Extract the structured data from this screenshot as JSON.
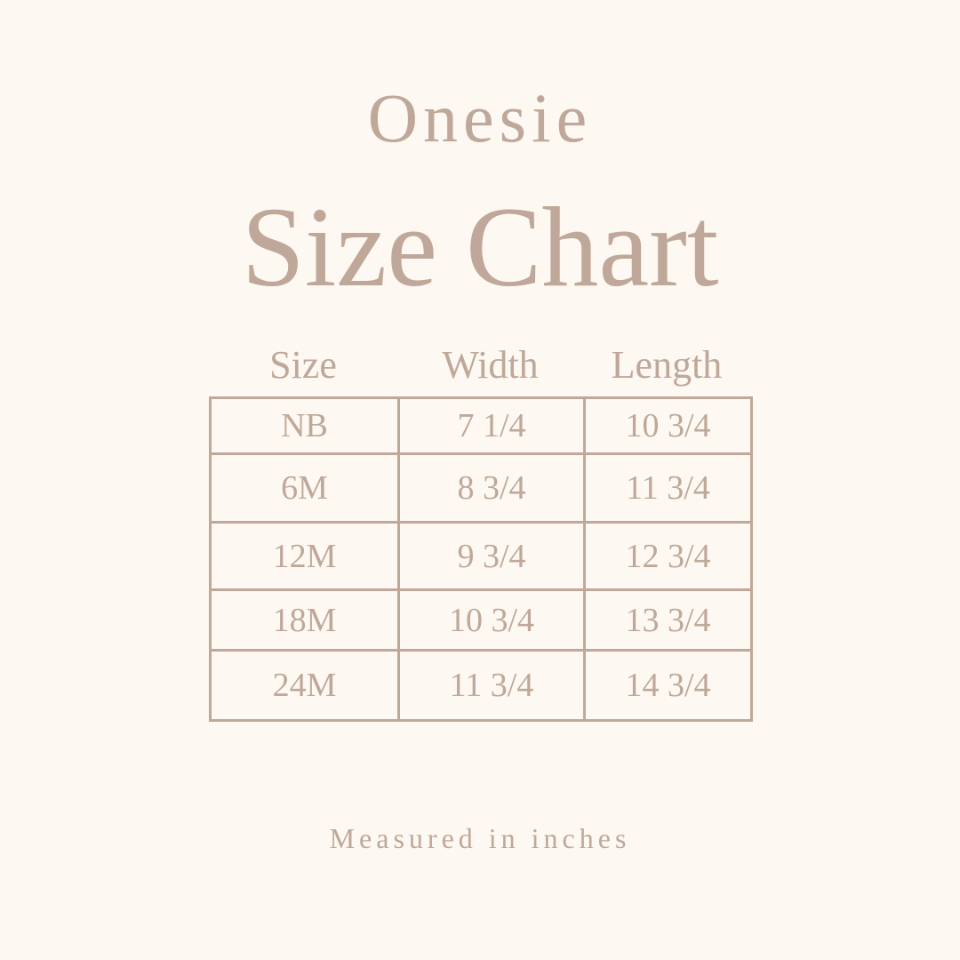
{
  "title_line1": "Onesie",
  "title_line2": "Size Chart",
  "columns": [
    "Size",
    "Width",
    "Length"
  ],
  "rows": [
    [
      "NB",
      "7 1/4",
      "10 3/4"
    ],
    [
      "6M",
      "8 3/4",
      "11 3/4"
    ],
    [
      "12M",
      "9 3/4",
      "12 3/4"
    ],
    [
      "18M",
      "10 3/4",
      "13 3/4"
    ],
    [
      "24M",
      "11 3/4",
      "14 3/4"
    ]
  ],
  "footer": "Measured in inches",
  "colors": {
    "background": "#fdf8f1",
    "text": "#bfa899"
  }
}
